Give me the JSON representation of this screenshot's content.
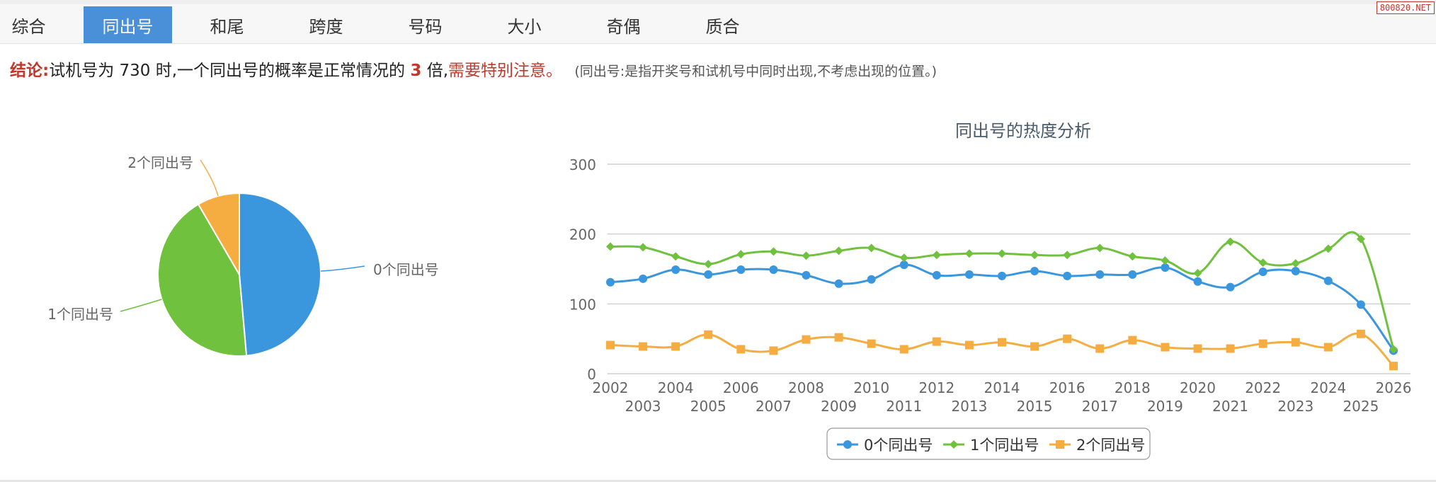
{
  "site": {
    "watermark": "800820.NET"
  },
  "tabs": [
    {
      "label": "综合",
      "active": false
    },
    {
      "label": "同出号",
      "active": true
    },
    {
      "label": "和尾",
      "active": false
    },
    {
      "label": "跨度",
      "active": false
    },
    {
      "label": "号码",
      "active": false
    },
    {
      "label": "大小",
      "active": false
    },
    {
      "label": "奇偶",
      "active": false
    },
    {
      "label": "质合",
      "active": false
    }
  ],
  "conclusion": {
    "label": "结论:",
    "text1": "试机号为 730 时,一个同出号的概率是正常情况的",
    "multiple": "3",
    "text2": "倍,",
    "warning": "需要特别注意。",
    "note": "(同出号:是指开奖号和试机号中同时出现,不考虑出现的位置。)"
  },
  "colors": {
    "zero": "#3a96dd",
    "one": "#6fc13e",
    "two": "#f5ad42",
    "accent": "#4a90d9",
    "warn": "#c0392b"
  },
  "chart_data": [
    {
      "type": "pie",
      "slices": [
        {
          "name": "0个同出号",
          "value": 48.6
        },
        {
          "name": "1个同出号",
          "value": 43.0
        },
        {
          "name": "2个同出号",
          "value": 8.4
        }
      ]
    },
    {
      "type": "line",
      "title": "同出号的热度分析",
      "x": [
        "2002",
        "2003",
        "2004",
        "2005",
        "2006",
        "2007",
        "2008",
        "2009",
        "2010",
        "2011",
        "2012",
        "2013",
        "2014",
        "2015",
        "2016",
        "2017",
        "2018",
        "2019",
        "2020",
        "2021",
        "2022",
        "2023",
        "2024",
        "2025",
        "2026"
      ],
      "ylim": [
        0,
        300
      ],
      "yticks": [
        "0",
        "100",
        "200",
        "300"
      ],
      "grid": true,
      "legend": "bottom",
      "series": [
        {
          "name": "0个同出号",
          "values": [
            131,
            136,
            149,
            142,
            149,
            149,
            141,
            129,
            135,
            156,
            141,
            142,
            140,
            147,
            140,
            142,
            142,
            152,
            132,
            124,
            146,
            147,
            133,
            99,
            33
          ]
        },
        {
          "name": "1个同出号",
          "values": [
            182,
            181,
            168,
            157,
            171,
            175,
            169,
            176,
            180,
            166,
            170,
            172,
            172,
            170,
            170,
            180,
            168,
            162,
            144,
            189,
            159,
            158,
            179,
            193,
            35
          ]
        },
        {
          "name": "2个同出号",
          "values": [
            41,
            39,
            39,
            56,
            35,
            33,
            49,
            52,
            43,
            35,
            46,
            41,
            45,
            39,
            50,
            36,
            48,
            38,
            36,
            36,
            43,
            45,
            38,
            57,
            11
          ]
        }
      ]
    }
  ]
}
